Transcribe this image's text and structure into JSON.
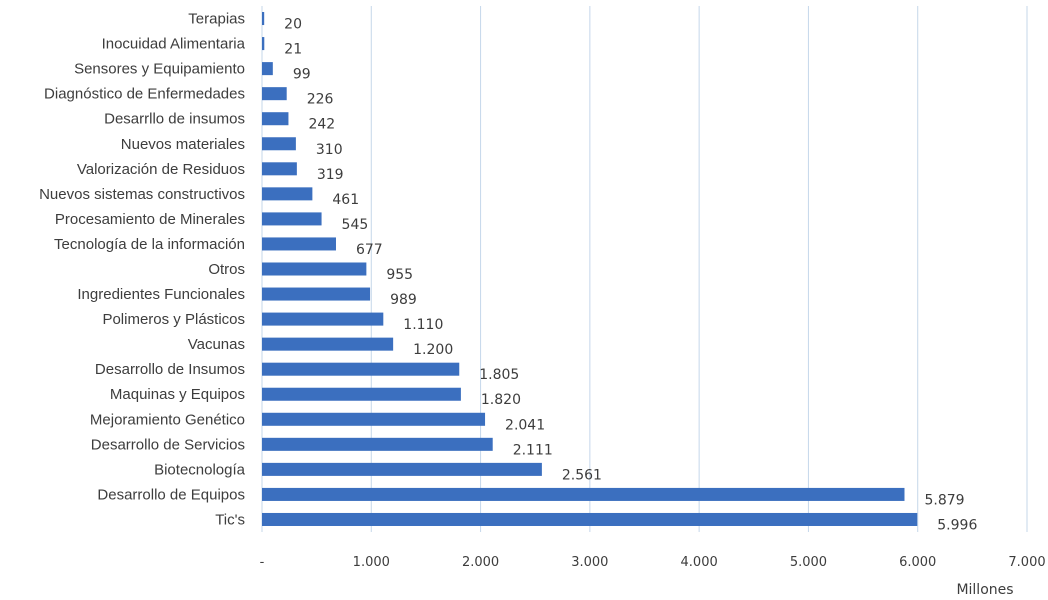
{
  "chart_data": {
    "type": "bar",
    "orientation": "horizontal",
    "categories": [
      "Terapias",
      "Inocuidad Alimentaria",
      "Sensores y Equipamiento",
      "Diagnóstico de Enfermedades",
      "Desarrllo de insumos",
      "Nuevos materiales",
      "Valorización de Residuos",
      "Nuevos sistemas constructivos",
      "Procesamiento de Minerales",
      "Tecnología de la información",
      "Otros",
      "Ingredientes Funcionales",
      "Polimeros y Plásticos",
      "Vacunas",
      "Desarrollo de Insumos",
      "Maquinas y Equipos",
      "Mejoramiento Genético",
      "Desarrollo de Servicios",
      "Biotecnología",
      "Desarrollo de Equipos",
      "Tic's"
    ],
    "values": [
      20,
      21,
      99,
      226,
      242,
      310,
      319,
      461,
      545,
      677,
      955,
      989,
      1110,
      1200,
      1805,
      1820,
      2041,
      2111,
      2561,
      5879,
      5996
    ],
    "value_labels": [
      "20",
      "21",
      "99",
      "226",
      "242",
      "310",
      "319",
      "461",
      "545",
      "677",
      "955",
      "989",
      "1.110",
      "1.200",
      "1.805",
      "1.820",
      "2.041",
      "2.111",
      "2.561",
      "5.879",
      "5.996"
    ],
    "xlim": [
      0,
      7000
    ],
    "x_ticks": [
      0,
      1000,
      2000,
      3000,
      4000,
      5000,
      6000,
      7000
    ],
    "x_tick_labels": [
      "-",
      "1.000",
      "2.000",
      "3.000",
      "4.000",
      "5.000",
      "6.000",
      "7.000"
    ],
    "xlabel": "Millones",
    "title": "",
    "grid": true,
    "bar_color": "#3b6fbf",
    "grid_color": "#c5d7ea",
    "text_color": "#3d3d3d"
  }
}
